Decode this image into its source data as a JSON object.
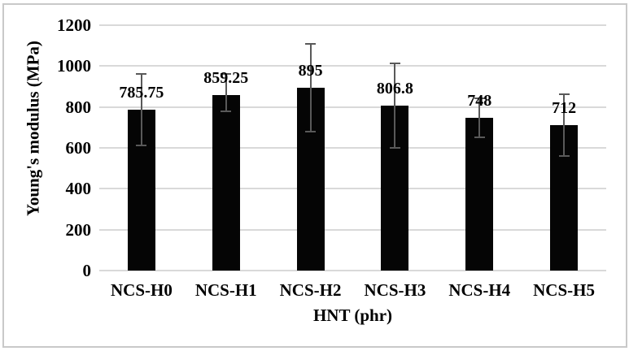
{
  "chart_data": {
    "type": "bar",
    "title": "",
    "xlabel": "HNT (phr)",
    "ylabel": "Young's modulus (MPa)",
    "categories": [
      "NCS-H0",
      "NCS-H1",
      "NCS-H2",
      "NCS-H3",
      "NCS-H4",
      "NCS-H5"
    ],
    "values": [
      785.75,
      859.25,
      895,
      806.8,
      748,
      712
    ],
    "value_labels": [
      "785.75",
      "859.25",
      "895",
      "806.8",
      "748",
      "712"
    ],
    "error_low": [
      612,
      777,
      680,
      600,
      653,
      560
    ],
    "error_high": [
      962,
      960,
      1110,
      1014,
      843,
      862
    ],
    "ylim": [
      0,
      1200
    ],
    "yticks": [
      0,
      200,
      400,
      600,
      800,
      1000,
      1200
    ],
    "ytick_labels": [
      "0",
      "200",
      "400",
      "600",
      "800",
      "1000",
      "1200"
    ],
    "grid": true,
    "legend": "none",
    "colors": {
      "bar": "#050505",
      "error_bar": "#595959",
      "gridline": "#d9d9d9",
      "text": "#000000",
      "frame_border": "#c9c9c9",
      "background": "#ffffff"
    }
  }
}
